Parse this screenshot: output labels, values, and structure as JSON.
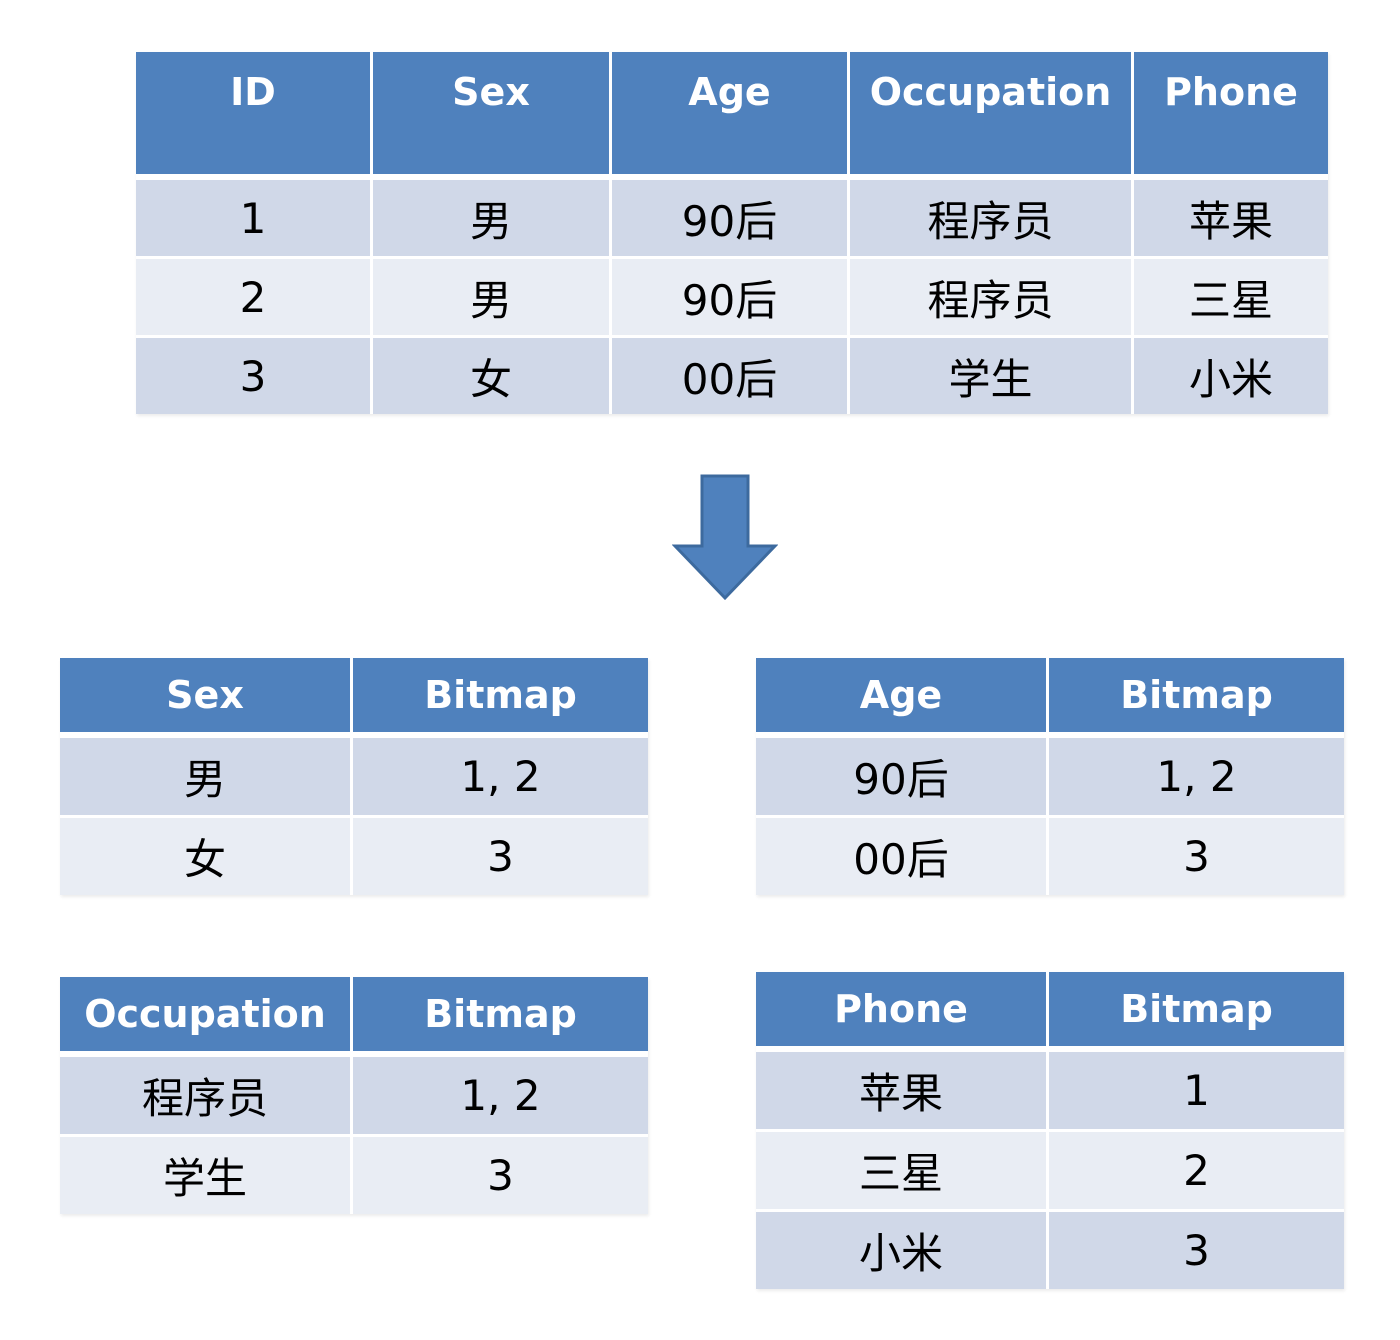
{
  "main_table": {
    "headers": [
      "ID",
      "Sex",
      "Age",
      "Occupation",
      "Phone"
    ],
    "rows": [
      [
        "1",
        "男",
        "90后",
        "程序员",
        "苹果"
      ],
      [
        "2",
        "男",
        "90后",
        "程序员",
        "三星"
      ],
      [
        "3",
        "女",
        "00后",
        "学生",
        "小米"
      ]
    ]
  },
  "arrow": {
    "icon": "down-arrow-icon",
    "color": "#4f81bd"
  },
  "sex_table": {
    "headers": [
      "Sex",
      "Bitmap"
    ],
    "rows": [
      [
        "男",
        "1, 2"
      ],
      [
        "女",
        "3"
      ]
    ]
  },
  "age_table": {
    "headers": [
      "Age",
      "Bitmap"
    ],
    "rows": [
      [
        "90后",
        "1, 2"
      ],
      [
        "00后",
        "3"
      ]
    ]
  },
  "occupation_table": {
    "headers": [
      "Occupation",
      "Bitmap"
    ],
    "rows": [
      [
        "程序员",
        "1, 2"
      ],
      [
        "学生",
        "3"
      ]
    ]
  },
  "phone_table": {
    "headers": [
      "Phone",
      "Bitmap"
    ],
    "rows": [
      [
        "苹果",
        "1"
      ],
      [
        "三星",
        "2"
      ],
      [
        "小米",
        "3"
      ]
    ]
  },
  "colors": {
    "header_bg": "#4f81bd",
    "row_odd_bg": "#d0d8e8",
    "row_even_bg": "#e9edf4"
  }
}
